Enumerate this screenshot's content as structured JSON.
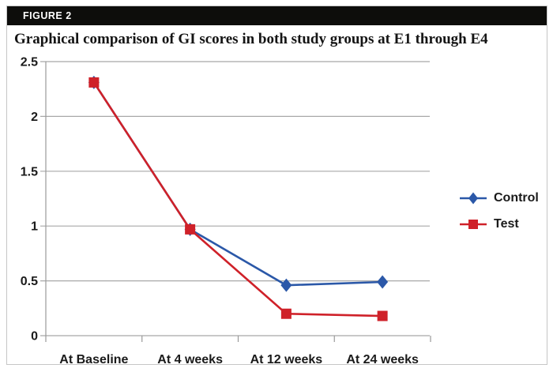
{
  "figure": {
    "label": "FIGURE 2",
    "title": "Graphical comparison of GI scores in both study groups at E1 through E4"
  },
  "colors": {
    "control": "#2b58a8",
    "test": "#cf2129",
    "grid": "#a8a8a8",
    "axis": "#9a9a9a",
    "header_bg": "#0d0d0b",
    "header_text": "#ffffff",
    "panel_border": "#c6c6c6",
    "label_text": "#1a1a1a"
  },
  "chart_data": {
    "type": "line",
    "title": "Graphical comparison of GI scores in both study groups at E1 through E4",
    "categories": [
      "At Baseline",
      "At 4 weeks",
      "At 12 weeks",
      "At 24 weeks"
    ],
    "series": [
      {
        "name": "Control",
        "marker": "diamond",
        "color": "#2b58a8",
        "values": [
          2.31,
          0.97,
          0.46,
          0.49
        ]
      },
      {
        "name": "Test",
        "marker": "square",
        "color": "#cf2129",
        "values": [
          2.31,
          0.97,
          0.2,
          0.18
        ]
      }
    ],
    "ylim": [
      0,
      2.5
    ],
    "ytick_step": 0.5,
    "ytick_labels": [
      "0",
      "0.5",
      "1",
      "1.5",
      "2",
      "2.5"
    ],
    "xlabel": "",
    "ylabel": "",
    "grid": true,
    "legend_position": "right"
  }
}
